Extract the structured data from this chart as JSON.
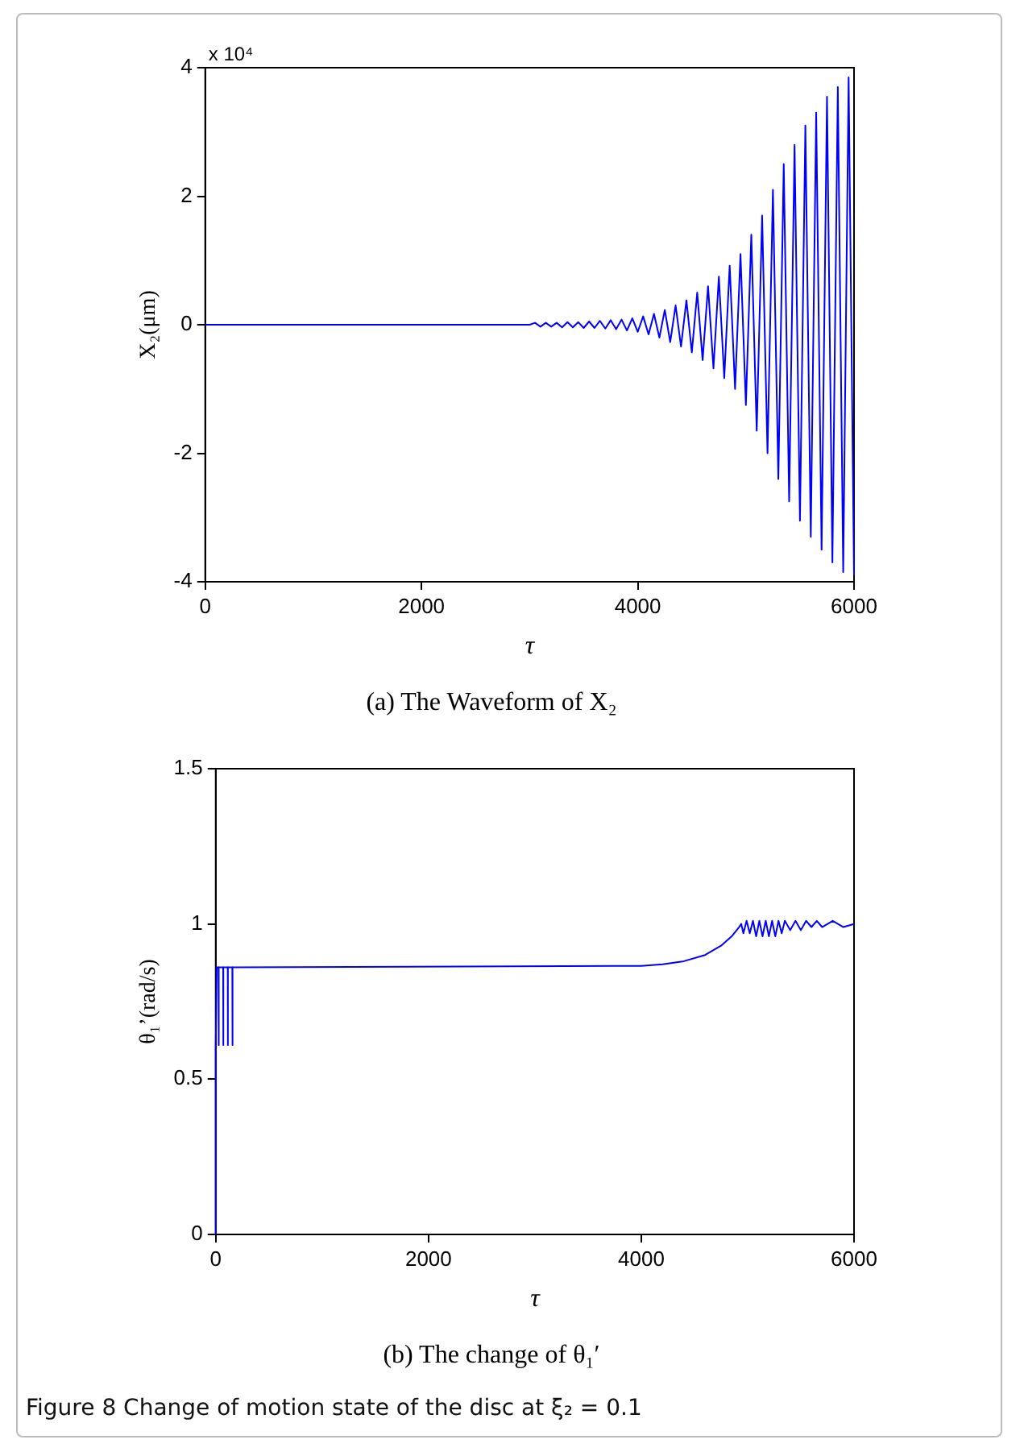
{
  "chart_data": [
    {
      "type": "line",
      "title": "(a) The Waveform of X₂",
      "xlabel": "τ",
      "ylabel": "X₂(μm)",
      "annotations": [
        "x 10⁴"
      ],
      "color": "#0000ff",
      "grid": false,
      "legend": false,
      "marker": "none",
      "line_style": "solid",
      "xlim": [
        0,
        6000
      ],
      "xticks": [
        0,
        2000,
        4000,
        6000
      ],
      "ylim": [
        -4,
        4
      ],
      "yticks": [
        -4,
        -2,
        0,
        2,
        4
      ],
      "x": [
        0,
        3000,
        3050,
        3100,
        3150,
        3200,
        3250,
        3300,
        3350,
        3400,
        3450,
        3500,
        3550,
        3600,
        3650,
        3700,
        3750,
        3800,
        3850,
        3900,
        3950,
        4000,
        4050,
        4100,
        4150,
        4200,
        4250,
        4300,
        4350,
        4400,
        4450,
        4500,
        4550,
        4600,
        4650,
        4700,
        4750,
        4800,
        4850,
        4900,
        4950,
        5000,
        5050,
        5100,
        5150,
        5200,
        5250,
        5300,
        5350,
        5400,
        5450,
        5500,
        5550,
        5600,
        5650,
        5700,
        5750,
        5800,
        5850,
        5900,
        5950,
        6000
      ],
      "values": [
        0,
        0,
        0.03,
        -0.03,
        0.03,
        -0.03,
        0.03,
        -0.04,
        0.04,
        -0.04,
        0.04,
        -0.05,
        0.05,
        -0.05,
        0.06,
        -0.06,
        0.07,
        -0.07,
        0.08,
        -0.09,
        0.1,
        -0.11,
        0.13,
        -0.15,
        0.17,
        -0.2,
        0.23,
        -0.27,
        0.3,
        -0.34,
        0.38,
        -0.43,
        0.5,
        -0.55,
        0.6,
        -0.68,
        0.75,
        -0.83,
        0.92,
        -1,
        1.1,
        -1.25,
        1.4,
        -1.65,
        1.7,
        -2,
        2.1,
        -2.4,
        2.5,
        -2.75,
        2.8,
        -3.05,
        3.1,
        -3.3,
        3.3,
        -3.5,
        3.55,
        -3.7,
        3.7,
        -3.85,
        3.85,
        -3.9
      ]
    },
    {
      "type": "line",
      "title": "(b) The change of θ₁′",
      "xlabel": "τ",
      "ylabel": "θ₁’(rad/s)",
      "annotations": [
        "Figure 8  Change of motion state of the disc at ξ₂ = 0.1"
      ],
      "color": "#0000ff",
      "grid": false,
      "legend": false,
      "marker": "none",
      "line_style": "solid",
      "xlim": [
        0,
        6000
      ],
      "xticks": [
        0,
        2000,
        4000,
        6000
      ],
      "ylim": [
        0,
        1.5
      ],
      "yticks": [
        0,
        0.5,
        1,
        1.5
      ],
      "x": [
        0,
        0,
        10,
        27,
        27,
        30,
        70,
        70,
        73,
        113,
        113,
        116,
        156,
        156,
        160,
        4000,
        4200,
        4400,
        4600,
        4750,
        4850,
        4920,
        4940,
        4960,
        4990,
        5020,
        5050,
        5080,
        5110,
        5140,
        5170,
        5200,
        5230,
        5260,
        5290,
        5320,
        5350,
        5400,
        5450,
        5500,
        5550,
        5600,
        5650,
        5700,
        5800,
        5900,
        6000
      ],
      "values": [
        0,
        0.6,
        0.86,
        0.86,
        0.61,
        0.86,
        0.86,
        0.61,
        0.86,
        0.86,
        0.61,
        0.86,
        0.86,
        0.61,
        0.86,
        0.865,
        0.87,
        0.88,
        0.9,
        0.93,
        0.96,
        0.99,
        1.0,
        0.97,
        1.01,
        0.97,
        1.01,
        0.96,
        1.01,
        0.96,
        1.01,
        0.96,
        1.01,
        0.96,
        1.01,
        0.97,
        1.01,
        0.98,
        1.01,
        0.98,
        1.01,
        0.99,
        1.01,
        0.99,
        1.01,
        0.99,
        1.0
      ]
    }
  ]
}
